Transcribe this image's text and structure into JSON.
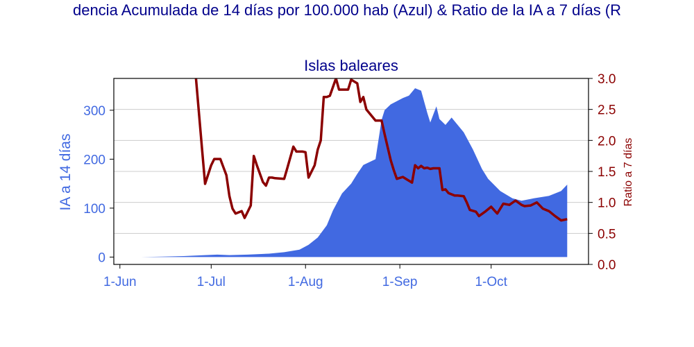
{
  "page": {
    "main_title": "dencia Acumulada de 14 días por 100.000 hab (Azul) & Ratio de la IA a 7 días (R"
  },
  "chart_data": {
    "type": "area",
    "title": "Islas baleares",
    "x_tick_labels": [
      "1-Jun",
      "1-Jul",
      "1-Aug",
      "1-Sep",
      "1-Oct"
    ],
    "x_tick_dates": [
      "2020-06-01",
      "2020-07-01",
      "2020-08-01",
      "2020-09-01",
      "2020-10-01"
    ],
    "xlim": [
      "2020-05-30",
      "2020-11-02"
    ],
    "y_left": {
      "label": "IA a 14 días",
      "ylim": [
        -15,
        365
      ],
      "ticks": [
        0,
        100,
        200,
        300
      ]
    },
    "y_right": {
      "label": "Ratio a 7 días",
      "ylim": [
        0,
        3
      ],
      "ticks": [
        "0.0",
        "0.5",
        "1.0",
        "1.5",
        "2.0",
        "2.5",
        "3.0"
      ]
    },
    "grid": true,
    "colors": {
      "area": "#4169e1",
      "ratio_line": "#8b0000",
      "title": "#00008b",
      "axis_left": "#4169e1",
      "axis_right": "#8b0000"
    },
    "series": [
      {
        "axis": "left",
        "type": "area",
        "x": [
          "2020-06-08",
          "2020-06-15",
          "2020-06-22",
          "2020-06-29",
          "2020-07-03",
          "2020-07-07",
          "2020-07-13",
          "2020-07-20",
          "2020-07-25",
          "2020-07-30",
          "2020-08-02",
          "2020-08-05",
          "2020-08-08",
          "2020-08-10",
          "2020-08-13",
          "2020-08-16",
          "2020-08-18",
          "2020-08-20",
          "2020-08-24",
          "2020-08-26",
          "2020-08-27",
          "2020-08-29",
          "2020-09-02",
          "2020-09-04",
          "2020-09-06",
          "2020-09-08",
          "2020-09-10",
          "2020-09-11",
          "2020-09-13",
          "2020-09-14",
          "2020-09-16",
          "2020-09-18",
          "2020-09-22",
          "2020-09-25",
          "2020-09-28",
          "2020-09-30",
          "2020-10-04",
          "2020-10-08",
          "2020-10-11",
          "2020-10-15",
          "2020-10-20",
          "2020-10-24",
          "2020-10-26"
        ],
        "values": [
          0,
          1,
          2,
          4,
          5,
          4,
          5,
          7,
          10,
          15,
          25,
          40,
          65,
          95,
          130,
          150,
          170,
          188,
          200,
          280,
          300,
          312,
          325,
          330,
          345,
          340,
          295,
          275,
          308,
          282,
          270,
          285,
          255,
          220,
          180,
          160,
          135,
          120,
          115,
          120,
          125,
          135,
          148
        ]
      },
      {
        "axis": "right",
        "type": "line",
        "name": "Ratio a 7 días",
        "x": [
          "2020-06-26",
          "2020-06-28",
          "2020-06-29",
          "2020-07-01",
          "2020-07-02",
          "2020-07-04",
          "2020-07-05",
          "2020-07-06",
          "2020-07-07",
          "2020-07-08",
          "2020-07-09",
          "2020-07-11",
          "2020-07-12",
          "2020-07-13",
          "2020-07-14",
          "2020-07-15",
          "2020-07-16",
          "2020-07-18",
          "2020-07-19",
          "2020-07-20",
          "2020-07-21",
          "2020-07-22",
          "2020-07-25",
          "2020-07-26",
          "2020-07-28",
          "2020-07-29",
          "2020-07-31",
          "2020-08-01",
          "2020-08-02",
          "2020-08-04",
          "2020-08-05",
          "2020-08-06",
          "2020-08-07",
          "2020-08-08",
          "2020-08-09",
          "2020-08-11",
          "2020-08-12",
          "2020-08-13",
          "2020-08-15",
          "2020-08-16",
          "2020-08-18",
          "2020-08-19",
          "2020-08-20",
          "2020-08-21",
          "2020-08-24",
          "2020-08-25",
          "2020-08-26",
          "2020-08-27",
          "2020-08-29",
          "2020-08-30",
          "2020-08-31",
          "2020-09-02",
          "2020-09-03",
          "2020-09-05",
          "2020-09-06",
          "2020-09-07",
          "2020-09-08",
          "2020-09-09",
          "2020-09-10",
          "2020-09-11",
          "2020-09-12",
          "2020-09-14",
          "2020-09-15",
          "2020-09-16",
          "2020-09-17",
          "2020-09-19",
          "2020-09-20",
          "2020-09-22",
          "2020-09-23",
          "2020-09-24",
          "2020-09-26",
          "2020-09-27",
          "2020-09-29",
          "2020-10-01",
          "2020-10-03",
          "2020-10-05",
          "2020-10-07",
          "2020-10-09",
          "2020-10-11",
          "2020-10-12",
          "2020-10-14",
          "2020-10-16",
          "2020-10-18",
          "2020-10-20",
          "2020-10-22",
          "2020-10-24",
          "2020-10-26"
        ],
        "values": [
          3.0,
          1.85,
          1.3,
          1.6,
          1.7,
          1.7,
          1.57,
          1.44,
          1.1,
          0.9,
          0.82,
          0.86,
          0.75,
          0.85,
          0.95,
          1.75,
          1.6,
          1.33,
          1.27,
          1.4,
          1.4,
          1.39,
          1.38,
          1.55,
          1.9,
          1.82,
          1.82,
          1.81,
          1.4,
          1.6,
          1.85,
          2.0,
          2.7,
          2.7,
          2.72,
          3.0,
          2.82,
          2.82,
          2.82,
          2.98,
          2.92,
          2.62,
          2.7,
          2.5,
          2.32,
          2.32,
          2.32,
          2.1,
          1.68,
          1.52,
          1.38,
          1.41,
          1.38,
          1.32,
          1.6,
          1.55,
          1.59,
          1.55,
          1.56,
          1.54,
          1.55,
          1.55,
          1.2,
          1.21,
          1.15,
          1.11,
          1.11,
          1.1,
          1.0,
          0.88,
          0.85,
          0.78,
          0.85,
          0.93,
          0.82,
          0.98,
          0.96,
          1.03,
          0.96,
          0.94,
          0.95,
          1.0,
          0.9,
          0.86,
          0.78,
          0.71,
          0.73
        ]
      }
    ]
  }
}
